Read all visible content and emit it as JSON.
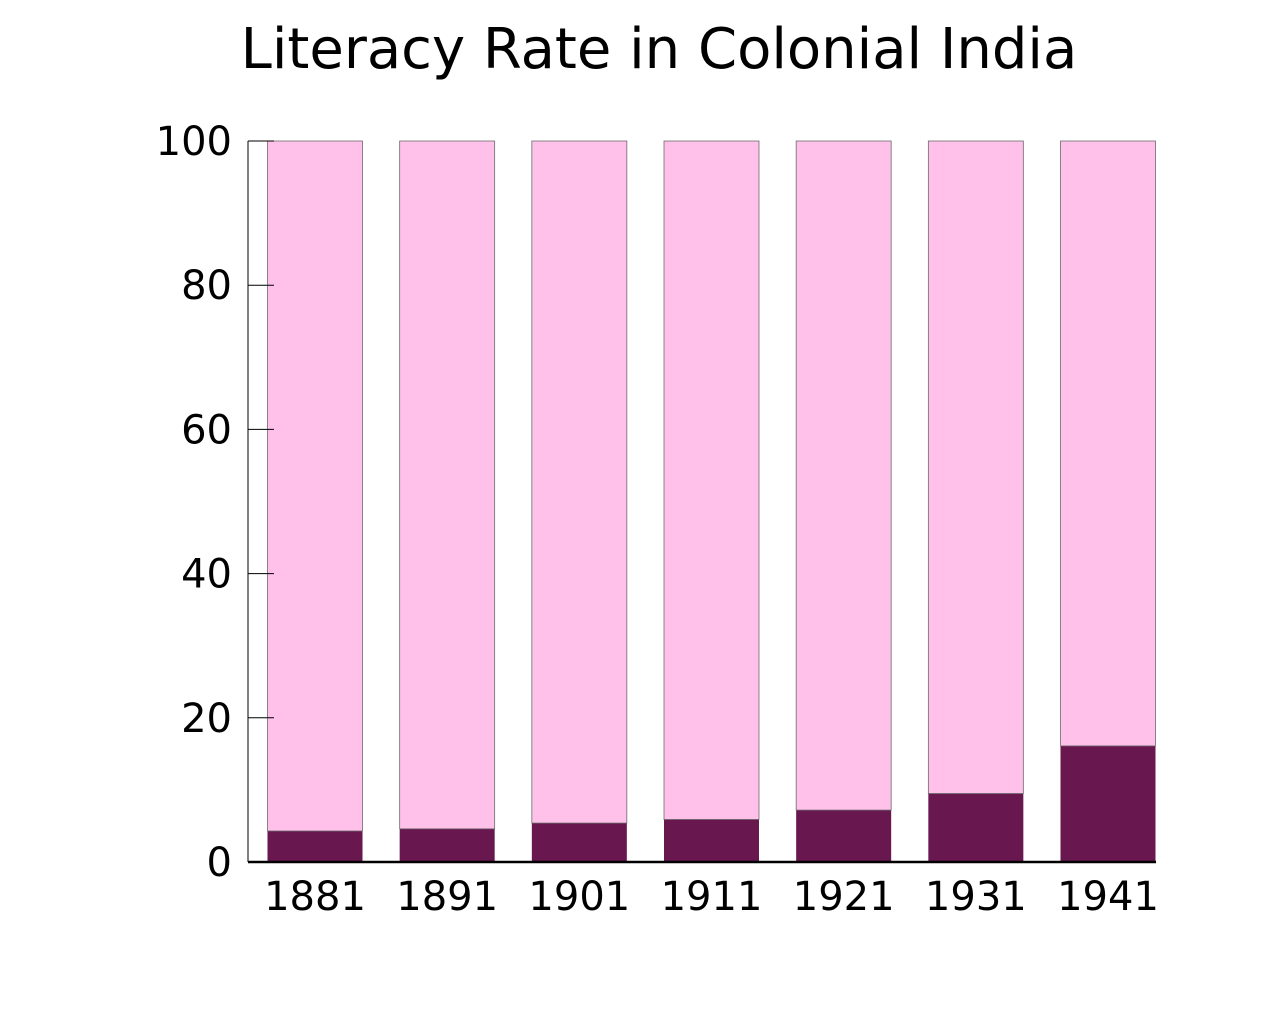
{
  "chart_data": {
    "type": "bar",
    "stacked": true,
    "title": "Literacy Rate in Colonial India",
    "xlabel": "",
    "ylabel": "",
    "categories": [
      "1881",
      "1891",
      "1901",
      "1911",
      "1921",
      "1931",
      "1941"
    ],
    "series": [
      {
        "values": [
          4.3,
          4.6,
          5.4,
          5.9,
          7.2,
          9.5,
          16.1
        ],
        "color": "#69174F"
      },
      {
        "values": [
          95.7,
          95.4,
          94.6,
          94.1,
          92.8,
          90.5,
          83.9
        ],
        "color": "#FFC0E9"
      }
    ],
    "ylim": [
      0,
      100
    ],
    "yticks": [
      0,
      20,
      40,
      60,
      80,
      100
    ],
    "grid": false,
    "legend": "none"
  }
}
